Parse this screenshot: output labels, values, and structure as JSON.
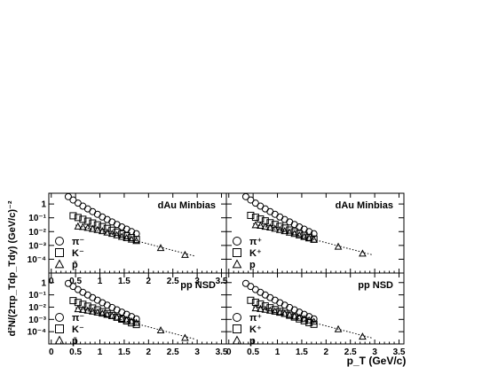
{
  "figure": {
    "ylabel": "d²N/(2πp_Tdp_Tdy) (GeV/c)⁻²",
    "xlabel": "p_T (GeV/c)"
  },
  "legend": {
    "neg": [
      {
        "symbol": "circle",
        "label": "π⁻"
      },
      {
        "symbol": "square",
        "label": "K⁻"
      },
      {
        "symbol": "triangle",
        "label": "p̄"
      }
    ],
    "pos": [
      {
        "symbol": "circle",
        "label": "π⁺"
      },
      {
        "symbol": "square",
        "label": "K⁺"
      },
      {
        "symbol": "triangle",
        "label": "p"
      }
    ]
  },
  "chart_data": [
    {
      "type": "scatter",
      "id": "top-left",
      "title": "dAu Minbias",
      "legend": "neg",
      "x_ticks": [
        "0",
        "0.5",
        "1",
        "1.5",
        "2",
        "2.5",
        "3",
        "3.5"
      ],
      "y_ticks": [
        "10⁻⁴",
        "10⁻³",
        "10⁻²",
        "10⁻¹",
        "1"
      ],
      "xlim": [
        -0.05,
        3.6
      ],
      "ylim": [
        1e-05,
        6
      ],
      "ylog": true,
      "series": [
        {
          "symbol": "circle",
          "x": [
            0.35,
            0.45,
            0.55,
            0.65,
            0.75,
            0.85,
            0.95,
            1.05,
            1.15,
            1.25,
            1.35,
            1.45,
            1.55,
            1.65,
            1.75
          ],
          "y": [
            3.4,
            1.95,
            1.15,
            0.7,
            0.44,
            0.28,
            0.18,
            0.115,
            0.075,
            0.05,
            0.033,
            0.022,
            0.015,
            0.01,
            0.007
          ]
        },
        {
          "symbol": "square",
          "x": [
            0.45,
            0.55,
            0.65,
            0.75,
            0.85,
            0.95,
            1.05,
            1.15,
            1.25,
            1.35,
            1.45,
            1.55,
            1.65,
            1.75
          ],
          "y": [
            0.14,
            0.105,
            0.078,
            0.057,
            0.042,
            0.031,
            0.023,
            0.017,
            0.0125,
            0.0092,
            0.0068,
            0.005,
            0.0037,
            0.0027
          ]
        },
        {
          "symbol": "triangle",
          "x": [
            0.55,
            0.65,
            0.75,
            0.85,
            0.95,
            1.05,
            1.15,
            1.25,
            1.35,
            1.45,
            1.55,
            1.65,
            1.75,
            2.25,
            2.75
          ],
          "y": [
            0.024,
            0.022,
            0.019,
            0.016,
            0.0135,
            0.011,
            0.0088,
            0.007,
            0.0055,
            0.0043,
            0.0034,
            0.0027,
            0.0021,
            0.00066,
            0.00021
          ]
        },
        {
          "symbol": "line",
          "x": [
            0.5,
            2.95
          ],
          "y": [
            0.03,
            0.00017
          ]
        }
      ]
    },
    {
      "type": "scatter",
      "id": "top-right",
      "title": "dAu Minbias",
      "legend": "pos",
      "x_ticks": [],
      "y_ticks": [],
      "xlim": [
        -0.05,
        3.6
      ],
      "ylim": [
        1e-05,
        6
      ],
      "ylog": true,
      "series": [
        {
          "symbol": "circle",
          "x": [
            0.35,
            0.45,
            0.55,
            0.65,
            0.75,
            0.85,
            0.95,
            1.05,
            1.15,
            1.25,
            1.35,
            1.45,
            1.55,
            1.65,
            1.75
          ],
          "y": [
            3.4,
            1.95,
            1.15,
            0.7,
            0.44,
            0.28,
            0.18,
            0.115,
            0.075,
            0.05,
            0.033,
            0.022,
            0.015,
            0.01,
            0.007
          ]
        },
        {
          "symbol": "square",
          "x": [
            0.45,
            0.55,
            0.65,
            0.75,
            0.85,
            0.95,
            1.05,
            1.15,
            1.25,
            1.35,
            1.45,
            1.55,
            1.65,
            1.75
          ],
          "y": [
            0.15,
            0.11,
            0.082,
            0.06,
            0.044,
            0.033,
            0.024,
            0.018,
            0.013,
            0.0097,
            0.0072,
            0.0053,
            0.0039,
            0.0029
          ]
        },
        {
          "symbol": "triangle",
          "x": [
            0.55,
            0.65,
            0.75,
            0.85,
            0.95,
            1.05,
            1.15,
            1.25,
            1.35,
            1.45,
            1.55,
            1.65,
            1.75,
            2.25,
            2.75
          ],
          "y": [
            0.03,
            0.027,
            0.023,
            0.02,
            0.0165,
            0.0135,
            0.011,
            0.0087,
            0.0069,
            0.0054,
            0.0042,
            0.0033,
            0.0026,
            0.00082,
            0.00026
          ]
        },
        {
          "symbol": "line",
          "x": [
            0.5,
            2.95
          ],
          "y": [
            0.038,
            0.00021
          ]
        }
      ]
    },
    {
      "type": "scatter",
      "id": "bottom-left",
      "title": "pp NSD",
      "legend": "neg",
      "x_ticks": [
        "0",
        "0.5",
        "1",
        "1.5",
        "2",
        "2.5",
        "3",
        "3.5"
      ],
      "y_ticks": [
        "10⁻⁴",
        "10⁻³",
        "10⁻²",
        "10⁻¹",
        "1"
      ],
      "xlim": [
        -0.05,
        3.6
      ],
      "ylim": [
        1e-05,
        6
      ],
      "ylog": true,
      "series": [
        {
          "symbol": "circle",
          "x": [
            0.35,
            0.45,
            0.55,
            0.65,
            0.75,
            0.85,
            0.95,
            1.05,
            1.15,
            1.25,
            1.35,
            1.45,
            1.55,
            1.65,
            1.75
          ],
          "y": [
            0.85,
            0.48,
            0.27,
            0.16,
            0.097,
            0.06,
            0.037,
            0.023,
            0.0145,
            0.0093,
            0.006,
            0.0039,
            0.0026,
            0.0017,
            0.0011
          ]
        },
        {
          "symbol": "square",
          "x": [
            0.45,
            0.55,
            0.65,
            0.75,
            0.85,
            0.95,
            1.05,
            1.15,
            1.25,
            1.35,
            1.45,
            1.55,
            1.65,
            1.75
          ],
          "y": [
            0.034,
            0.024,
            0.017,
            0.012,
            0.0085,
            0.006,
            0.0042,
            0.003,
            0.0021,
            0.0015,
            0.00105,
            0.00075,
            0.00053,
            0.00038
          ]
        },
        {
          "symbol": "triangle",
          "x": [
            0.55,
            0.65,
            0.75,
            0.85,
            0.95,
            1.05,
            1.15,
            1.25,
            1.35,
            1.45,
            1.55,
            1.65,
            1.75,
            2.25,
            2.75
          ],
          "y": [
            0.007,
            0.0062,
            0.0053,
            0.0045,
            0.0037,
            0.003,
            0.0024,
            0.0019,
            0.00148,
            0.00115,
            0.0009,
            0.0007,
            0.00054,
            0.00013,
            3.2e-05
          ]
        },
        {
          "symbol": "line",
          "x": [
            0.5,
            2.95
          ],
          "y": [
            0.009,
            2.5e-05
          ]
        }
      ]
    },
    {
      "type": "scatter",
      "id": "bottom-right",
      "title": "pp NSD",
      "legend": "pos",
      "x_ticks": [
        "0",
        "0.5",
        "1",
        "1.5",
        "2",
        "2.5",
        "3",
        "3.5"
      ],
      "y_ticks": [],
      "xlim": [
        -0.05,
        3.6
      ],
      "ylim": [
        1e-05,
        6
      ],
      "ylog": true,
      "series": [
        {
          "symbol": "circle",
          "x": [
            0.35,
            0.45,
            0.55,
            0.65,
            0.75,
            0.85,
            0.95,
            1.05,
            1.15,
            1.25,
            1.35,
            1.45,
            1.55,
            1.65,
            1.75
          ],
          "y": [
            0.85,
            0.48,
            0.27,
            0.16,
            0.097,
            0.06,
            0.037,
            0.023,
            0.0145,
            0.0093,
            0.006,
            0.0039,
            0.0026,
            0.0017,
            0.0011
          ]
        },
        {
          "symbol": "square",
          "x": [
            0.45,
            0.55,
            0.65,
            0.75,
            0.85,
            0.95,
            1.05,
            1.15,
            1.25,
            1.35,
            1.45,
            1.55,
            1.65,
            1.75
          ],
          "y": [
            0.036,
            0.025,
            0.018,
            0.0125,
            0.0089,
            0.0063,
            0.0044,
            0.0031,
            0.0022,
            0.00156,
            0.0011,
            0.00078,
            0.00055,
            0.0004
          ]
        },
        {
          "symbol": "triangle",
          "x": [
            0.55,
            0.65,
            0.75,
            0.85,
            0.95,
            1.05,
            1.15,
            1.25,
            1.35,
            1.45,
            1.55,
            1.65,
            1.75,
            2.25,
            2.75
          ],
          "y": [
            0.0082,
            0.0073,
            0.0063,
            0.0053,
            0.0044,
            0.0036,
            0.0029,
            0.0023,
            0.0018,
            0.0014,
            0.0011,
            0.00085,
            0.00066,
            0.00016,
            4e-05
          ]
        },
        {
          "symbol": "line",
          "x": [
            0.5,
            2.95
          ],
          "y": [
            0.011,
            3e-05
          ]
        }
      ]
    }
  ]
}
